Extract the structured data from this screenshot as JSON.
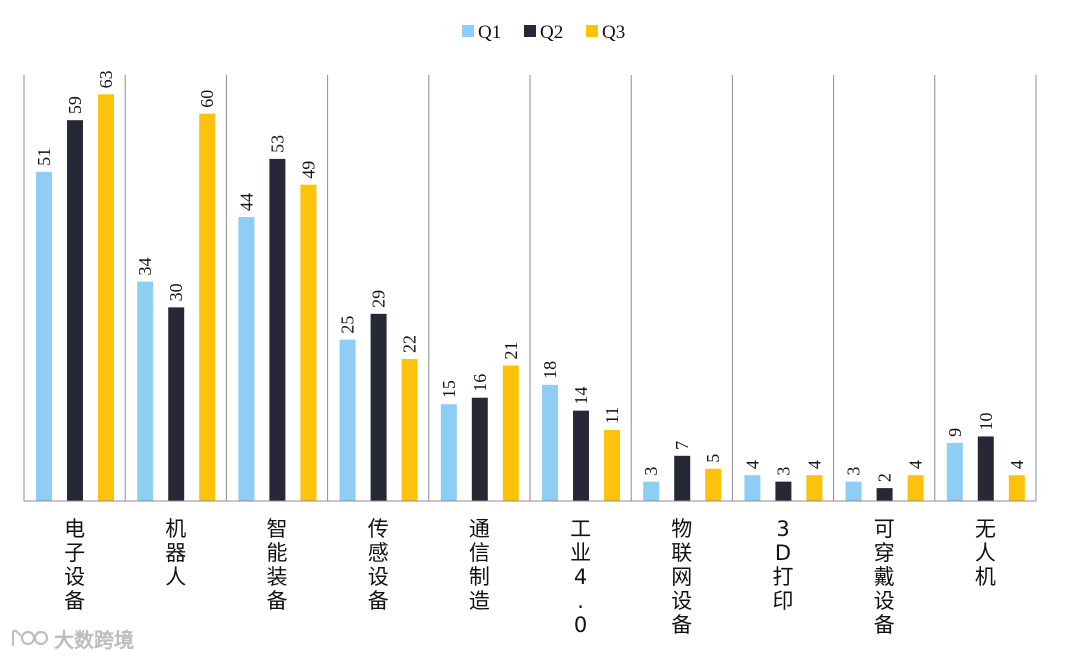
{
  "chart_data": {
    "type": "bar",
    "categories": [
      "电子设备",
      "机器人",
      "智能装备",
      "传感设备",
      "通信制造",
      "工业4.0",
      "物联网设备",
      "3D打印",
      "可穿戴设备",
      "无人机"
    ],
    "series": [
      {
        "name": "Q1",
        "color": "#8ecdf4",
        "values": [
          51,
          34,
          44,
          25,
          15,
          18,
          3,
          4,
          3,
          9
        ]
      },
      {
        "name": "Q2",
        "color": "#262837",
        "values": [
          59,
          30,
          53,
          29,
          16,
          14,
          7,
          3,
          2,
          10
        ]
      },
      {
        "name": "Q3",
        "color": "#fdc20b",
        "values": [
          63,
          60,
          49,
          22,
          21,
          11,
          5,
          4,
          4,
          4
        ]
      }
    ],
    "ylim": [
      0,
      66
    ],
    "legend_position": "top-center",
    "grid": false,
    "title": "",
    "xlabel": "",
    "ylabel": ""
  },
  "watermark": {
    "text": "大数跨境",
    "icon": "logo-icon"
  }
}
